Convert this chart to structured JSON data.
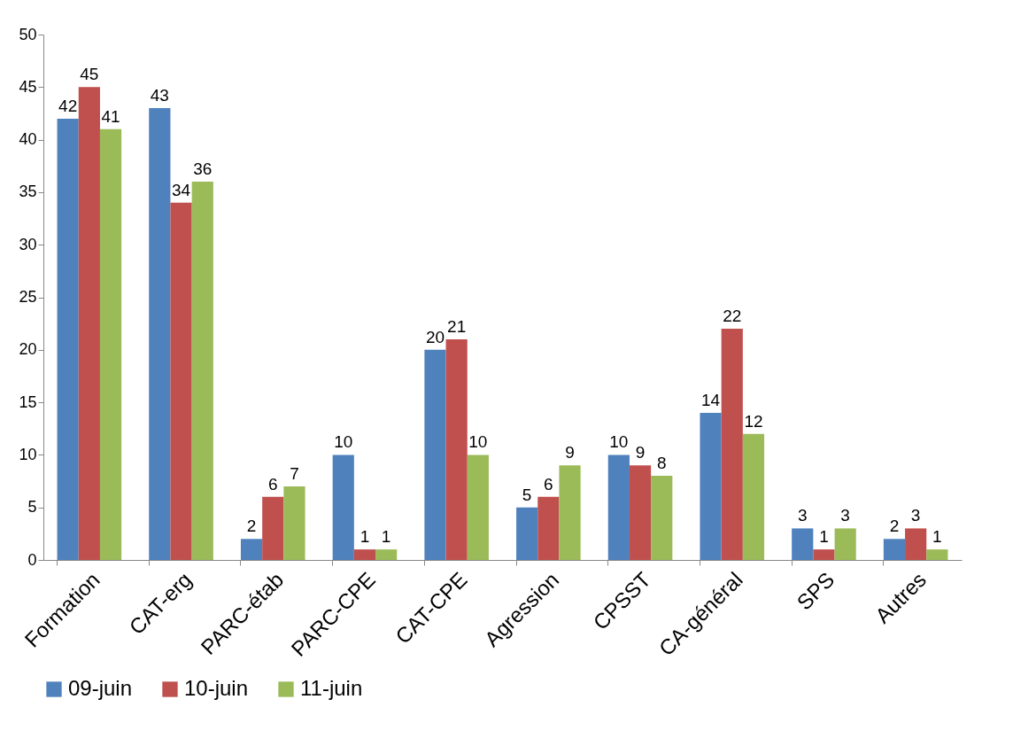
{
  "chart_data": {
    "type": "bar",
    "categories": [
      "Formation",
      "CAT-erg",
      "PARC-étab",
      "PARC-CPE",
      "CAT-CPE",
      "Agression",
      "CPSST",
      "CA-général",
      "SPS",
      "Autres"
    ],
    "series": [
      {
        "name": "09-juin",
        "color": "#4f81bd",
        "values": [
          42,
          43,
          2,
          10,
          20,
          5,
          10,
          14,
          3,
          2
        ]
      },
      {
        "name": "10-juin",
        "color": "#c0504d",
        "values": [
          45,
          34,
          6,
          1,
          21,
          6,
          9,
          22,
          1,
          3
        ]
      },
      {
        "name": "11-juin",
        "color": "#9bbb59",
        "values": [
          41,
          36,
          7,
          1,
          10,
          9,
          8,
          12,
          3,
          1
        ]
      }
    ],
    "ylim": [
      0,
      50
    ],
    "yticks": [
      0,
      5,
      10,
      15,
      20,
      25,
      30,
      35,
      40,
      45,
      50
    ],
    "grid": false,
    "legend": "bottom",
    "data_labels": true
  }
}
